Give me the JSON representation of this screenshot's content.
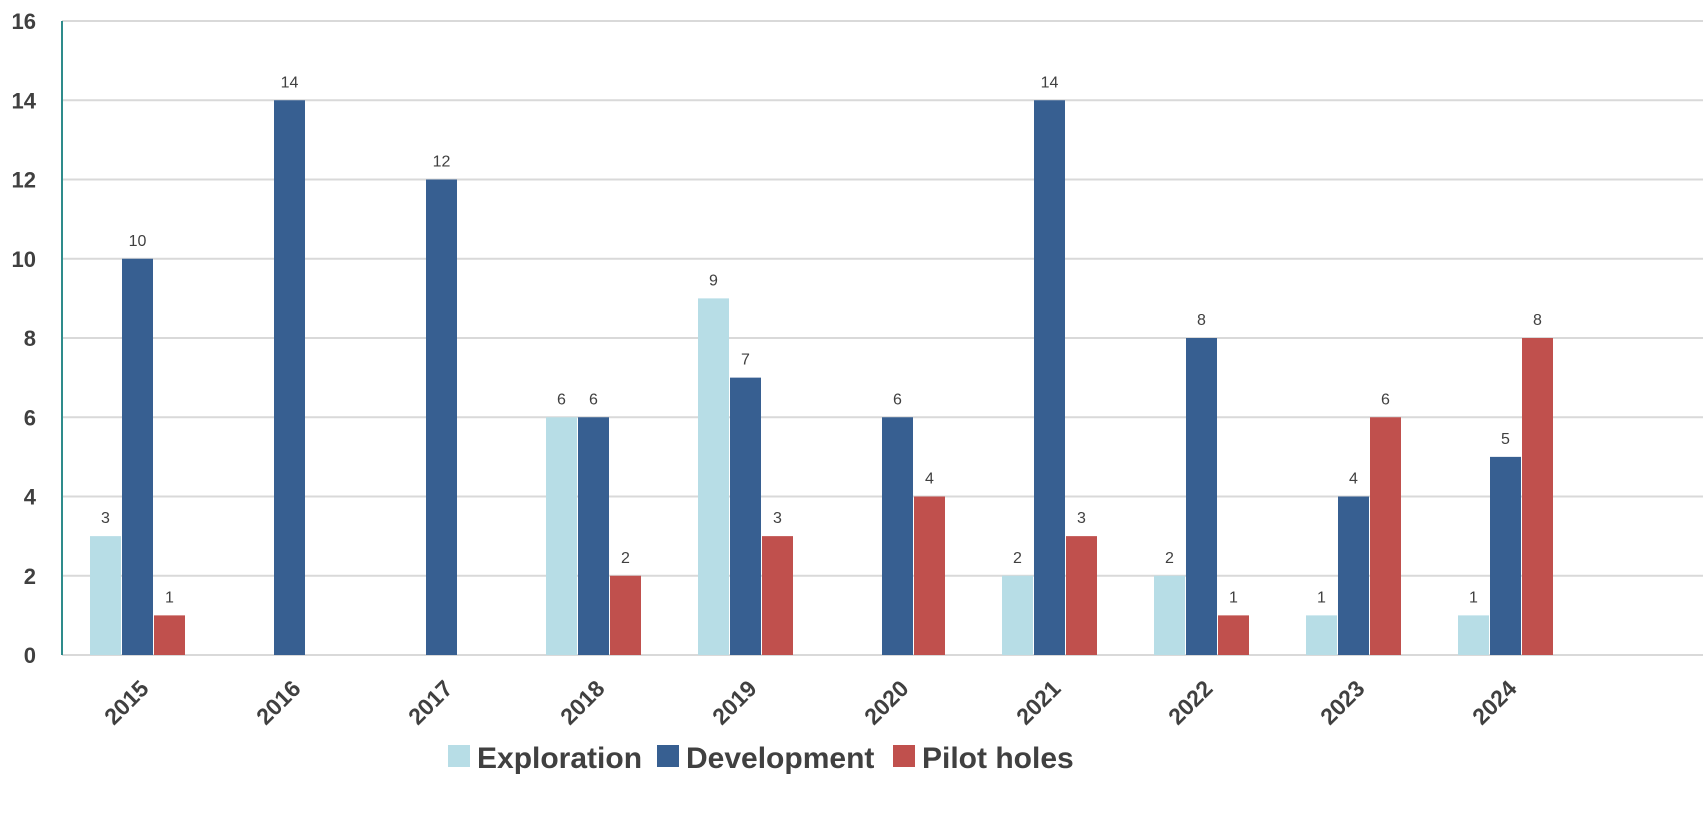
{
  "chart_data": {
    "type": "bar",
    "categories": [
      "2015",
      "2016",
      "2017",
      "2018",
      "2019",
      "2020",
      "2021",
      "2022",
      "2023",
      "2024"
    ],
    "series": [
      {
        "name": "Exploration",
        "color": "#b7dde6",
        "values": [
          3,
          0,
          0,
          6,
          9,
          0,
          2,
          2,
          1,
          1
        ]
      },
      {
        "name": "Development",
        "color": "#375f91",
        "values": [
          10,
          14,
          12,
          6,
          7,
          6,
          14,
          8,
          4,
          5
        ]
      },
      {
        "name": "Pilot holes",
        "color": "#c0504d",
        "values": [
          1,
          0,
          0,
          2,
          3,
          4,
          3,
          1,
          6,
          8
        ]
      }
    ],
    "ylim": [
      0,
      16
    ],
    "yticks": [
      0,
      2,
      4,
      6,
      8,
      10,
      12,
      14,
      16
    ],
    "grid": true,
    "legend_position": "bottom",
    "data_labels": true,
    "title": "",
    "xlabel": "",
    "ylabel": ""
  }
}
